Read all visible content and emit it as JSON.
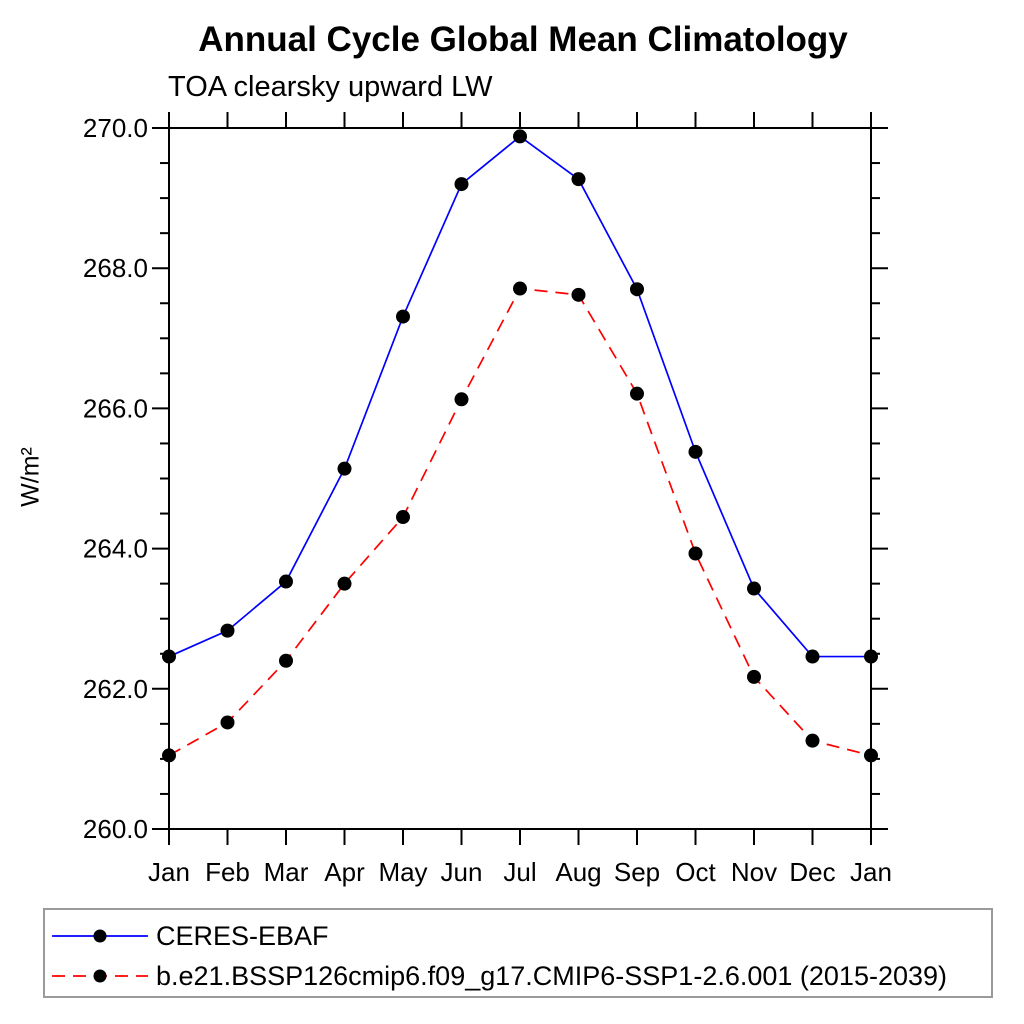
{
  "window": {
    "background": "#ffffff",
    "text_color": "#000000",
    "axis_color": "#000000",
    "legend_border_color": "#9a9a9a"
  },
  "chart_data": {
    "type": "line",
    "title": "Annual Cycle Global Mean Climatology",
    "subtitle": "TOA clearsky upward LW",
    "ylabel": "W/m²",
    "xlabel": "",
    "categories": [
      "Jan",
      "Feb",
      "Mar",
      "Apr",
      "May",
      "Jun",
      "Jul",
      "Aug",
      "Sep",
      "Oct",
      "Nov",
      "Dec",
      "Jan"
    ],
    "series": [
      {
        "name": "CERES-EBAF",
        "color": "#0000ff",
        "line_style": "solid",
        "marker": "filled-black-circle",
        "values": [
          262.46,
          262.83,
          263.53,
          265.14,
          267.31,
          269.2,
          269.88,
          269.27,
          267.7,
          265.38,
          263.43,
          262.46,
          262.46
        ]
      },
      {
        "name": "b.e21.BSSP126cmip6.f09_g17.CMIP6-SSP1-2.6.001 (2015-2039)",
        "color": "#ff0000",
        "line_style": "dashed",
        "marker": "filled-black-circle",
        "values": [
          261.05,
          261.52,
          262.4,
          263.5,
          264.45,
          266.13,
          267.71,
          267.62,
          266.21,
          263.93,
          262.17,
          261.26,
          261.05
        ]
      }
    ],
    "ylim": [
      260.0,
      270.0
    ],
    "ytick_major_step": 2.0,
    "ytick_minor_step": 0.5,
    "ytick_labels": [
      "260.0",
      "262.0",
      "264.0",
      "266.0",
      "268.0",
      "270.0"
    ],
    "grid": false,
    "legend_position": "bottom",
    "marker_color": "#000000"
  }
}
